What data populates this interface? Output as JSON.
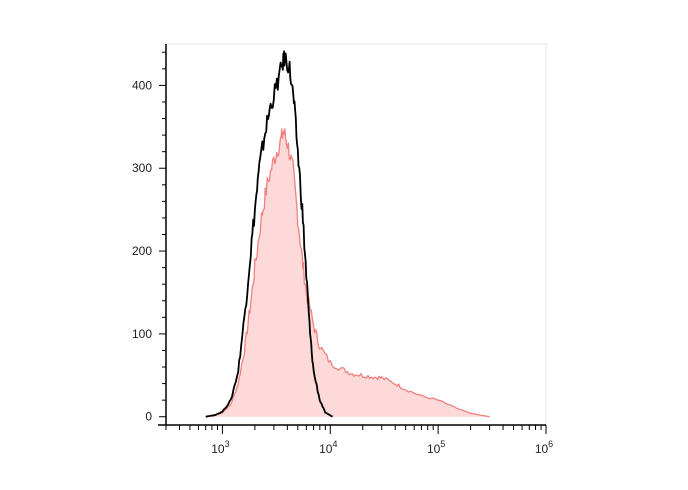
{
  "chart_data": {
    "type": "area",
    "title": "",
    "xlabel": "",
    "ylabel": "",
    "x_scale": "log",
    "xlim": [
      300,
      1000000
    ],
    "ylim": [
      -10,
      450
    ],
    "x_ticks": [
      {
        "value": 1000,
        "base": "10",
        "exp": "3"
      },
      {
        "value": 10000,
        "base": "10",
        "exp": "4"
      },
      {
        "value": 100000,
        "base": "10",
        "exp": "5"
      },
      {
        "value": 1000000,
        "base": "10",
        "exp": "6"
      }
    ],
    "y_ticks": [
      {
        "value": 0,
        "label": "0"
      },
      {
        "value": 100,
        "label": "100"
      },
      {
        "value": 200,
        "label": "200"
      },
      {
        "value": 300,
        "label": "300"
      },
      {
        "value": 400,
        "label": "400"
      }
    ],
    "grid": false,
    "legend": "none",
    "series": [
      {
        "color": "#000000",
        "filled": false,
        "points": [
          [
            700,
            0
          ],
          [
            850,
            2
          ],
          [
            1000,
            6
          ],
          [
            1200,
            20
          ],
          [
            1400,
            55
          ],
          [
            1600,
            120
          ],
          [
            1800,
            190
          ],
          [
            2000,
            250
          ],
          [
            2200,
            300
          ],
          [
            2500,
            345
          ],
          [
            2800,
            375
          ],
          [
            3200,
            400
          ],
          [
            3600,
            425
          ],
          [
            3800,
            435
          ],
          [
            4200,
            420
          ],
          [
            4600,
            380
          ],
          [
            5000,
            320
          ],
          [
            5500,
            250
          ],
          [
            6000,
            170
          ],
          [
            6500,
            100
          ],
          [
            7000,
            55
          ],
          [
            8000,
            20
          ],
          [
            9000,
            5
          ],
          [
            10500,
            0
          ]
        ]
      },
      {
        "color": "#f08080",
        "fill": "#fdd9d9",
        "filled": true,
        "points": [
          [
            800,
            0
          ],
          [
            1000,
            5
          ],
          [
            1200,
            15
          ],
          [
            1400,
            40
          ],
          [
            1600,
            80
          ],
          [
            1800,
            130
          ],
          [
            2000,
            180
          ],
          [
            2300,
            240
          ],
          [
            2600,
            280
          ],
          [
            3000,
            310
          ],
          [
            3400,
            330
          ],
          [
            3700,
            345
          ],
          [
            4000,
            330
          ],
          [
            4500,
            300
          ],
          [
            5000,
            240
          ],
          [
            5500,
            190
          ],
          [
            6000,
            150
          ],
          [
            7000,
            110
          ],
          [
            8000,
            85
          ],
          [
            10000,
            65
          ],
          [
            13000,
            57
          ],
          [
            16000,
            52
          ],
          [
            20000,
            50
          ],
          [
            25000,
            48
          ],
          [
            30000,
            47
          ],
          [
            40000,
            40
          ],
          [
            50000,
            33
          ],
          [
            70000,
            25
          ],
          [
            100000,
            20
          ],
          [
            150000,
            10
          ],
          [
            200000,
            4
          ],
          [
            300000,
            0
          ]
        ]
      }
    ]
  }
}
